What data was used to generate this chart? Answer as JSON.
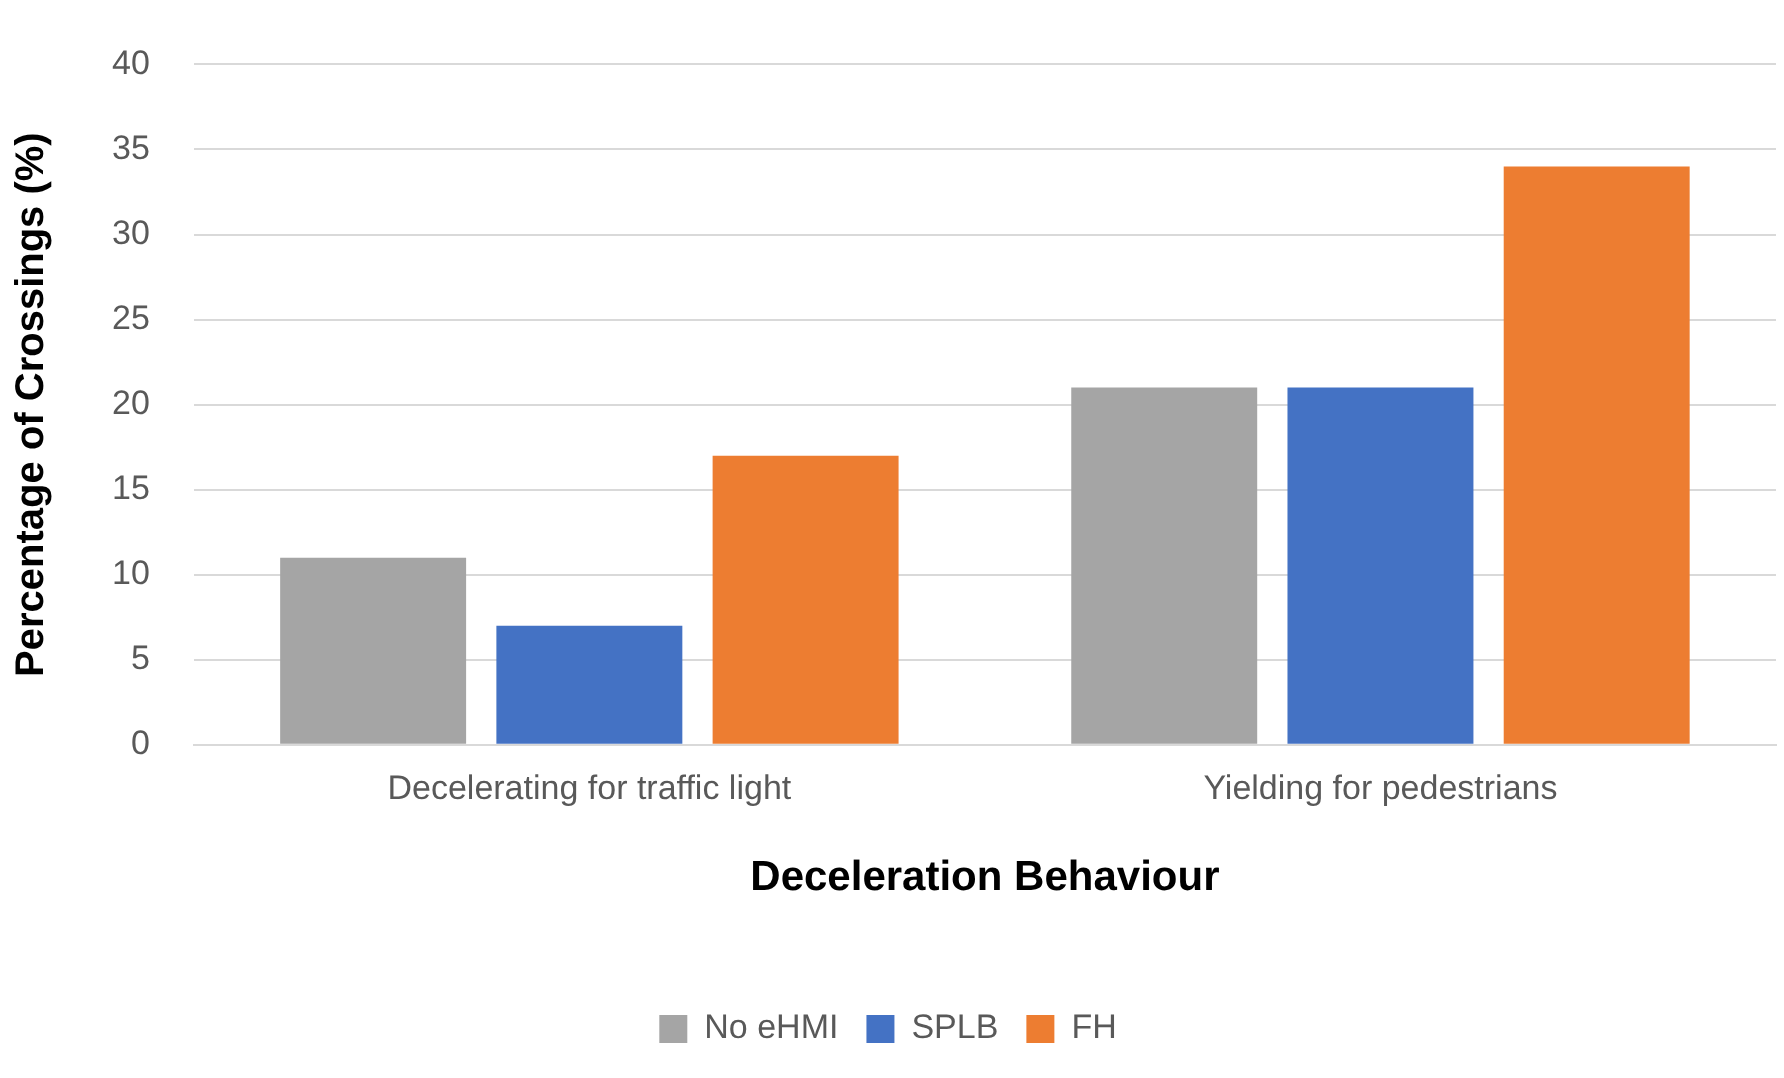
{
  "chart_data": {
    "type": "bar",
    "xlabel": "Deceleration Behaviour",
    "ylabel": "Percentage of Crossings (%)",
    "categories": [
      "Decelerating for traffic light",
      "Yielding for pedestrians"
    ],
    "series": [
      {
        "name": "No eHMI",
        "color": "#a5a5a5",
        "values": [
          11,
          21
        ]
      },
      {
        "name": "SPLB",
        "color": "#4472c4",
        "values": [
          7,
          21
        ]
      },
      {
        "name": "FH",
        "color": "#ed7d31",
        "values": [
          17,
          34
        ]
      }
    ],
    "ylim": [
      0,
      40
    ],
    "yticks": [
      0,
      5,
      10,
      15,
      20,
      25,
      30,
      35,
      40
    ],
    "grid": "y",
    "legend": "bottom"
  }
}
